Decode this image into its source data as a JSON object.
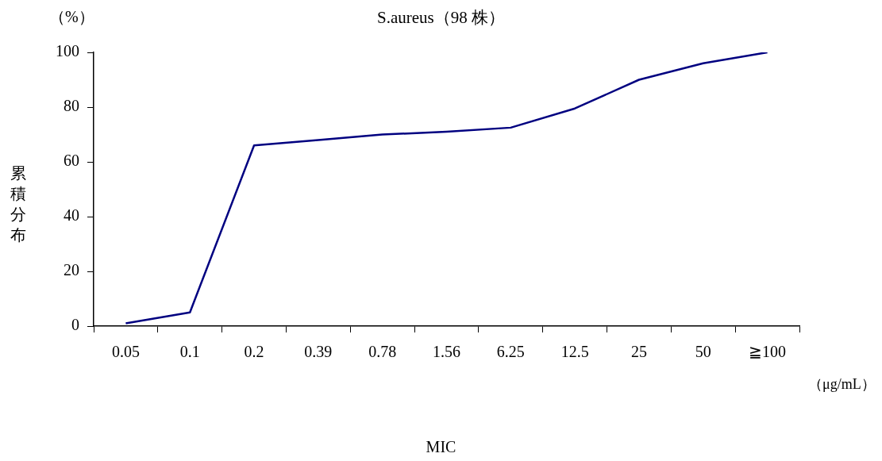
{
  "chart_data": {
    "type": "line",
    "title": "S.aureus（98 株）",
    "xlabel": "MIC",
    "ylabel": "累積分布",
    "annotations": [
      "（%）",
      "（μg/mL）"
    ],
    "categories": [
      "0.05",
      "0.1",
      "0.2",
      "0.39",
      "0.78",
      "1.56",
      "6.25",
      "12.5",
      "25",
      "50",
      "≧100"
    ],
    "series": [
      {
        "color": "#000080",
        "values": [
          1,
          5,
          66,
          68,
          70,
          71,
          72.5,
          79.5,
          90,
          96,
          100
        ]
      }
    ],
    "ylim": [
      0,
      100
    ],
    "yticks": [
      0,
      20,
      40,
      60,
      80,
      100
    ],
    "grid": false,
    "legend": false,
    "marker": "none",
    "line_style": "solid"
  }
}
